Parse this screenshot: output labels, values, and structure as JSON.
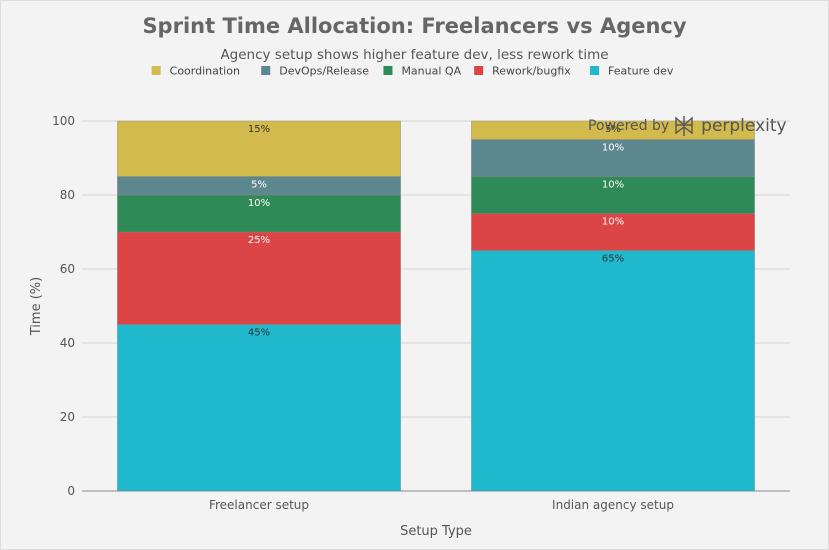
{
  "chart_data": {
    "type": "bar",
    "stacked": true,
    "title": "Sprint Time Allocation: Freelancers vs Agency",
    "subtitle": "Agency setup shows higher feature dev, less rework time",
    "xlabel": "Setup Type",
    "ylabel": "Time (%)",
    "ylim": [
      0,
      100
    ],
    "yticks": [
      0,
      20,
      40,
      60,
      80,
      100
    ],
    "grid": true,
    "legend_position": "top-center",
    "categories": [
      "Freelancer setup",
      "Indian agency setup"
    ],
    "series": [
      {
        "name": "Feature dev",
        "color": "#1fb8cd",
        "values": [
          45,
          65
        ],
        "labels": [
          "45%",
          "65%"
        ],
        "label_color": "#333333"
      },
      {
        "name": "Rework/bugfix",
        "color": "#db4545",
        "values": [
          25,
          10
        ],
        "labels": [
          "25%",
          "10%"
        ],
        "label_color": "#ffffff"
      },
      {
        "name": "Manual QA",
        "color": "#2e8b57",
        "values": [
          10,
          10
        ],
        "labels": [
          "10%",
          "10%"
        ],
        "label_color": "#ffffff"
      },
      {
        "name": "DevOps/Release",
        "color": "#5d878f",
        "values": [
          5,
          10
        ],
        "labels": [
          "5%",
          "10%"
        ],
        "label_color": "#ffffff"
      },
      {
        "name": "Coordination",
        "color": "#d2ba4c",
        "values": [
          15,
          5
        ],
        "labels": [
          "15%",
          "5%"
        ],
        "label_color": "#333333"
      }
    ],
    "legend_order": [
      "Coordination",
      "DevOps/Release",
      "Manual QA",
      "Rework/bugfix",
      "Feature dev"
    ]
  },
  "watermark": {
    "prefix": "Powered by",
    "brand": "perplexity"
  }
}
